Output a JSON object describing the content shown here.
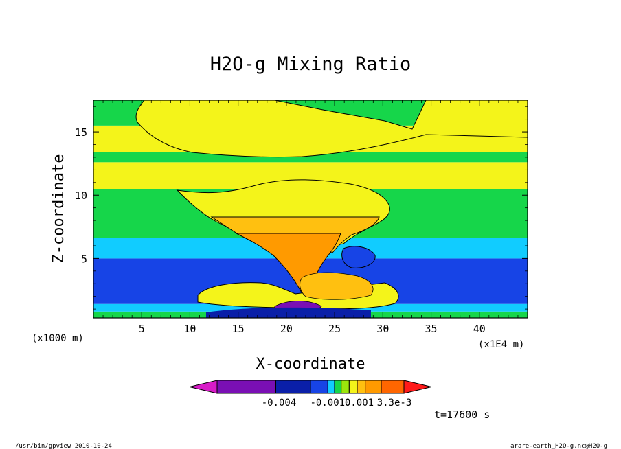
{
  "chart_data": {
    "type": "heatmap",
    "title": "H2O-g Mixing Ratio",
    "xlabel": "X-coordinate",
    "ylabel": "Z-coordinate",
    "x_unit_left": "(x1000 m)",
    "x_unit_right": "(x1E4 m)",
    "xlim": [
      0,
      45
    ],
    "ylim": [
      0.3,
      17.5
    ],
    "x_ticks": [
      5,
      10,
      15,
      20,
      25,
      30,
      35,
      40
    ],
    "y_ticks": [
      5,
      10,
      15
    ],
    "time_label": "t=17600 s",
    "colorbar": {
      "tick_labels": [
        "-0.004",
        "-0.0010",
        "0.001",
        "3.3e-3"
      ],
      "colors": [
        "#d81cc8",
        "#7a0fb4",
        "#0a1fa8",
        "#1744e6",
        "#11ccff",
        "#16d64a",
        "#9be60c",
        "#f4f41a",
        "#ffc010",
        "#ff9a00",
        "#ff6600",
        "#ff1a1a"
      ]
    },
    "field_bands": [
      {
        "zmin": 0.3,
        "zmax": 0.8,
        "color": "#16d64a"
      },
      {
        "zmin": 0.8,
        "zmax": 1.4,
        "color": "#11ccff"
      },
      {
        "zmin": 1.4,
        "zmax": 5.0,
        "color": "#1744e6"
      },
      {
        "zmin": 5.0,
        "zmax": 6.6,
        "color": "#11ccff"
      },
      {
        "zmin": 6.6,
        "zmax": 10.5,
        "color": "#16d64a"
      },
      {
        "zmin": 10.5,
        "zmax": 12.6,
        "color": "#f4f41a"
      },
      {
        "zmin": 12.6,
        "zmax": 13.4,
        "color": "#16d64a"
      },
      {
        "zmin": 13.4,
        "zmax": 15.5,
        "color": "#f4f41a"
      },
      {
        "zmin": 15.5,
        "zmax": 17.5,
        "color": "#16d64a"
      }
    ]
  },
  "footer": {
    "left": "/usr/bin/gpview  2010-10-24",
    "right": "arare-earth_H2O-g.nc@H2O-g"
  }
}
